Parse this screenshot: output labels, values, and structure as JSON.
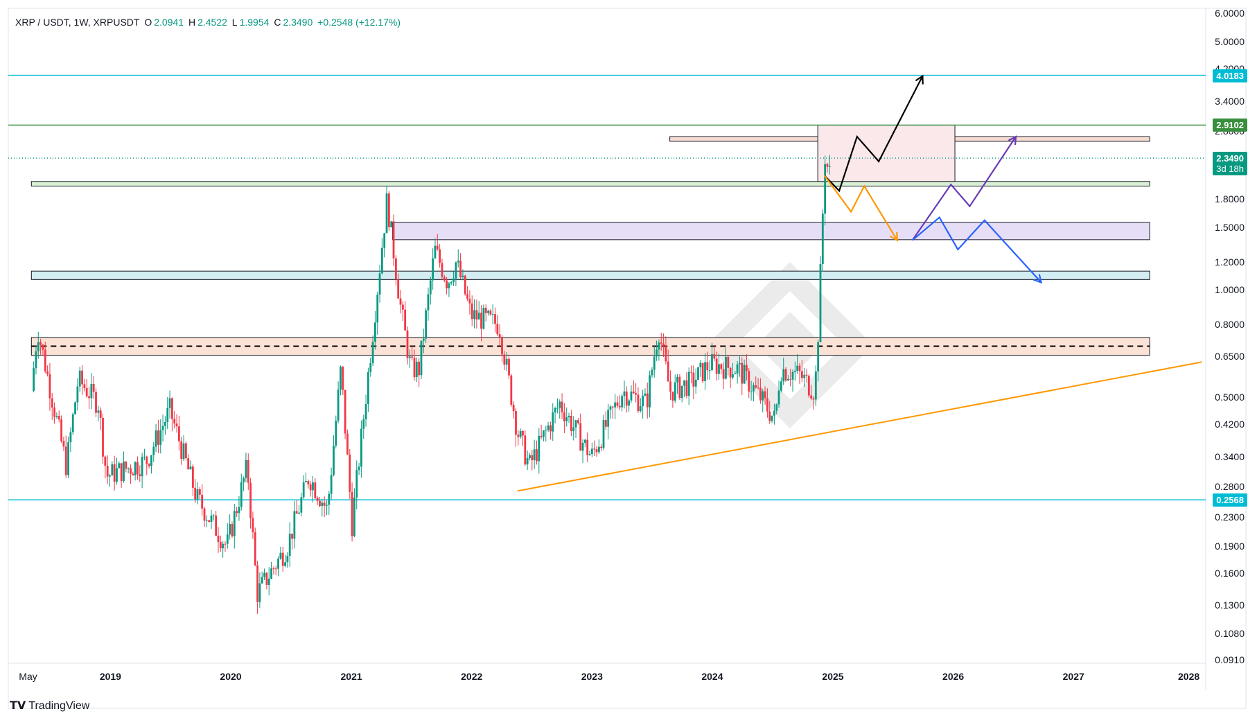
{
  "header": {
    "symbol": "XRP / USDT, 1W, XRPUSDT",
    "open_label": "O",
    "open": "2.0941",
    "high_label": "H",
    "high": "2.4522",
    "low_label": "L",
    "low": "1.9954",
    "close_label": "C",
    "close": "2.3490",
    "change": "+0.2548 (+12.17%)"
  },
  "footer": {
    "brand": "TradingView"
  },
  "chart_data": {
    "type": "candlestick",
    "timeframe": "1W",
    "y_scale": "log",
    "ylim": [
      0.0891,
      6.2
    ],
    "y_ticks": [
      "6.0000",
      "5.0000",
      "4.2000",
      "3.4000",
      "2.8000",
      "2.3490",
      "1.8000",
      "1.5000",
      "1.2000",
      "1.0000",
      "0.8000",
      "0.6500",
      "0.5000",
      "0.4200",
      "0.3400",
      "0.2800",
      "0.2300",
      "0.1900",
      "0.1600",
      "0.1300",
      "0.1080",
      "0.0910"
    ],
    "x_ticks": [
      "May",
      "2019",
      "2020",
      "2021",
      "2022",
      "2023",
      "2024",
      "2025",
      "2026",
      "2027",
      "2028"
    ],
    "x_tick_dates": [
      "2018-05-01",
      "2019-01-01",
      "2020-01-01",
      "2021-01-01",
      "2022-01-01",
      "2023-01-01",
      "2024-01-01",
      "2025-01-01",
      "2026-01-01",
      "2027-01-01",
      "2028-01-01"
    ],
    "xlim": [
      "2018-02-20",
      "2028-02-01"
    ],
    "price_badges": [
      {
        "label": "4.0183",
        "value": 4.0183,
        "color": "#00bcd4"
      },
      {
        "label": "2.9102",
        "value": 2.9102,
        "color": "#388e3c"
      },
      {
        "label": "2.3490",
        "value": 2.349,
        "color": "#089981",
        "sub": "3d 18h"
      },
      {
        "label": "0.2568",
        "value": 0.2568,
        "color": "#00bcd4"
      }
    ],
    "horizontal_lines": [
      {
        "value": 4.0183,
        "color": "#00bcd4"
      },
      {
        "value": 2.9102,
        "color": "#388e3c"
      },
      {
        "value": 0.2568,
        "color": "#00bcd4"
      },
      {
        "value": 2.349,
        "color": "#089981",
        "style": "dotted"
      },
      {
        "value": 0.695,
        "color": "#000000",
        "style": "dashed",
        "from": "2018-05-01",
        "to": "2027-08-15"
      }
    ],
    "zones": [
      {
        "from": "2018-05-01",
        "to": "2027-08-15",
        "low": 1.96,
        "high": 2.02,
        "color": "#d8f0d4"
      },
      {
        "from": "2023-08-20",
        "to": "2027-08-15",
        "low": 2.62,
        "high": 2.7,
        "color": "#f6dcd2"
      },
      {
        "from": "2021-05-01",
        "to": "2027-08-15",
        "low": 1.385,
        "high": 1.55,
        "color": "#e6def7"
      },
      {
        "from": "2018-05-01",
        "to": "2027-08-15",
        "low": 1.07,
        "high": 1.13,
        "color": "#d3edf3"
      },
      {
        "from": "2018-05-01",
        "to": "2027-08-15",
        "low": 0.655,
        "high": 0.735,
        "color": "#fbe2d6"
      },
      {
        "from": "2024-11-11",
        "to": "2026-01-01",
        "low": 2.02,
        "high": 2.91,
        "color": "#fbe8ea"
      }
    ],
    "trendline": {
      "color": "#ff9800",
      "points": [
        [
          "2022-05-15",
          0.272
        ],
        [
          "2028-01-20",
          0.627
        ]
      ]
    },
    "projections": [
      {
        "color": "#000000",
        "points": [
          [
            "2024-12-01",
            2.1
          ],
          [
            "2025-01-15",
            1.9
          ],
          [
            "2025-03-10",
            2.7
          ],
          [
            "2025-05-15",
            2.3
          ],
          [
            "2025-09-25",
            4.0
          ]
        ]
      },
      {
        "color": "#ff9800",
        "points": [
          [
            "2024-12-01",
            2.1
          ],
          [
            "2025-02-20",
            1.66
          ],
          [
            "2025-04-01",
            1.96
          ],
          [
            "2025-07-10",
            1.38
          ]
        ]
      },
      {
        "color": "#673ab7",
        "points": [
          [
            "2025-08-25",
            1.38
          ],
          [
            "2025-12-20",
            1.98
          ],
          [
            "2026-02-15",
            1.72
          ],
          [
            "2026-07-05",
            2.7
          ]
        ]
      },
      {
        "color": "#2962ff",
        "points": [
          [
            "2025-08-25",
            1.38
          ],
          [
            "2025-11-15",
            1.6
          ],
          [
            "2026-01-10",
            1.3
          ],
          [
            "2026-04-01",
            1.57
          ],
          [
            "2026-09-20",
            1.05
          ]
        ]
      }
    ],
    "anchors": [
      [
        "2018-05-01",
        0.52
      ],
      [
        "2018-05-20",
        0.78
      ],
      [
        "2018-08-15",
        0.32
      ],
      [
        "2018-09-20",
        0.56
      ],
      [
        "2018-11-20",
        0.48
      ],
      [
        "2018-12-15",
        0.3
      ],
      [
        "2019-04-15",
        0.33
      ],
      [
        "2019-06-25",
        0.46
      ],
      [
        "2019-09-15",
        0.26
      ],
      [
        "2019-12-15",
        0.19
      ],
      [
        "2020-02-15",
        0.32
      ],
      [
        "2020-03-16",
        0.14
      ],
      [
        "2020-06-15",
        0.19
      ],
      [
        "2020-08-20",
        0.3
      ],
      [
        "2020-10-15",
        0.24
      ],
      [
        "2020-11-25",
        0.6
      ],
      [
        "2020-12-29",
        0.22
      ],
      [
        "2021-02-01",
        0.43
      ],
      [
        "2021-04-14",
        1.8
      ],
      [
        "2021-05-25",
        0.9
      ],
      [
        "2021-06-25",
        0.6
      ],
      [
        "2021-07-20",
        0.6
      ],
      [
        "2021-09-06",
        1.3
      ],
      [
        "2021-10-15",
        1.05
      ],
      [
        "2021-11-10",
        1.2
      ],
      [
        "2021-12-25",
        0.85
      ],
      [
        "2022-03-20",
        0.8
      ],
      [
        "2022-05-15",
        0.4
      ],
      [
        "2022-06-20",
        0.32
      ],
      [
        "2022-09-20",
        0.48
      ],
      [
        "2022-12-25",
        0.34
      ],
      [
        "2023-03-30",
        0.52
      ],
      [
        "2023-06-10",
        0.48
      ],
      [
        "2023-07-17",
        0.78
      ],
      [
        "2023-08-20",
        0.52
      ],
      [
        "2023-10-25",
        0.55
      ],
      [
        "2023-12-20",
        0.62
      ],
      [
        "2024-03-15",
        0.6
      ],
      [
        "2024-05-20",
        0.5
      ],
      [
        "2024-07-05",
        0.43
      ],
      [
        "2024-07-20",
        0.6
      ],
      [
        "2024-09-15",
        0.58
      ],
      [
        "2024-11-02",
        0.52
      ],
      [
        "2024-11-10",
        0.68
      ],
      [
        "2024-11-24",
        1.45
      ],
      [
        "2024-12-02",
        2.4
      ],
      [
        "2024-12-09",
        2.25
      ],
      [
        "2024-12-16",
        2.1
      ],
      [
        "2024-12-23",
        2.35
      ]
    ]
  }
}
